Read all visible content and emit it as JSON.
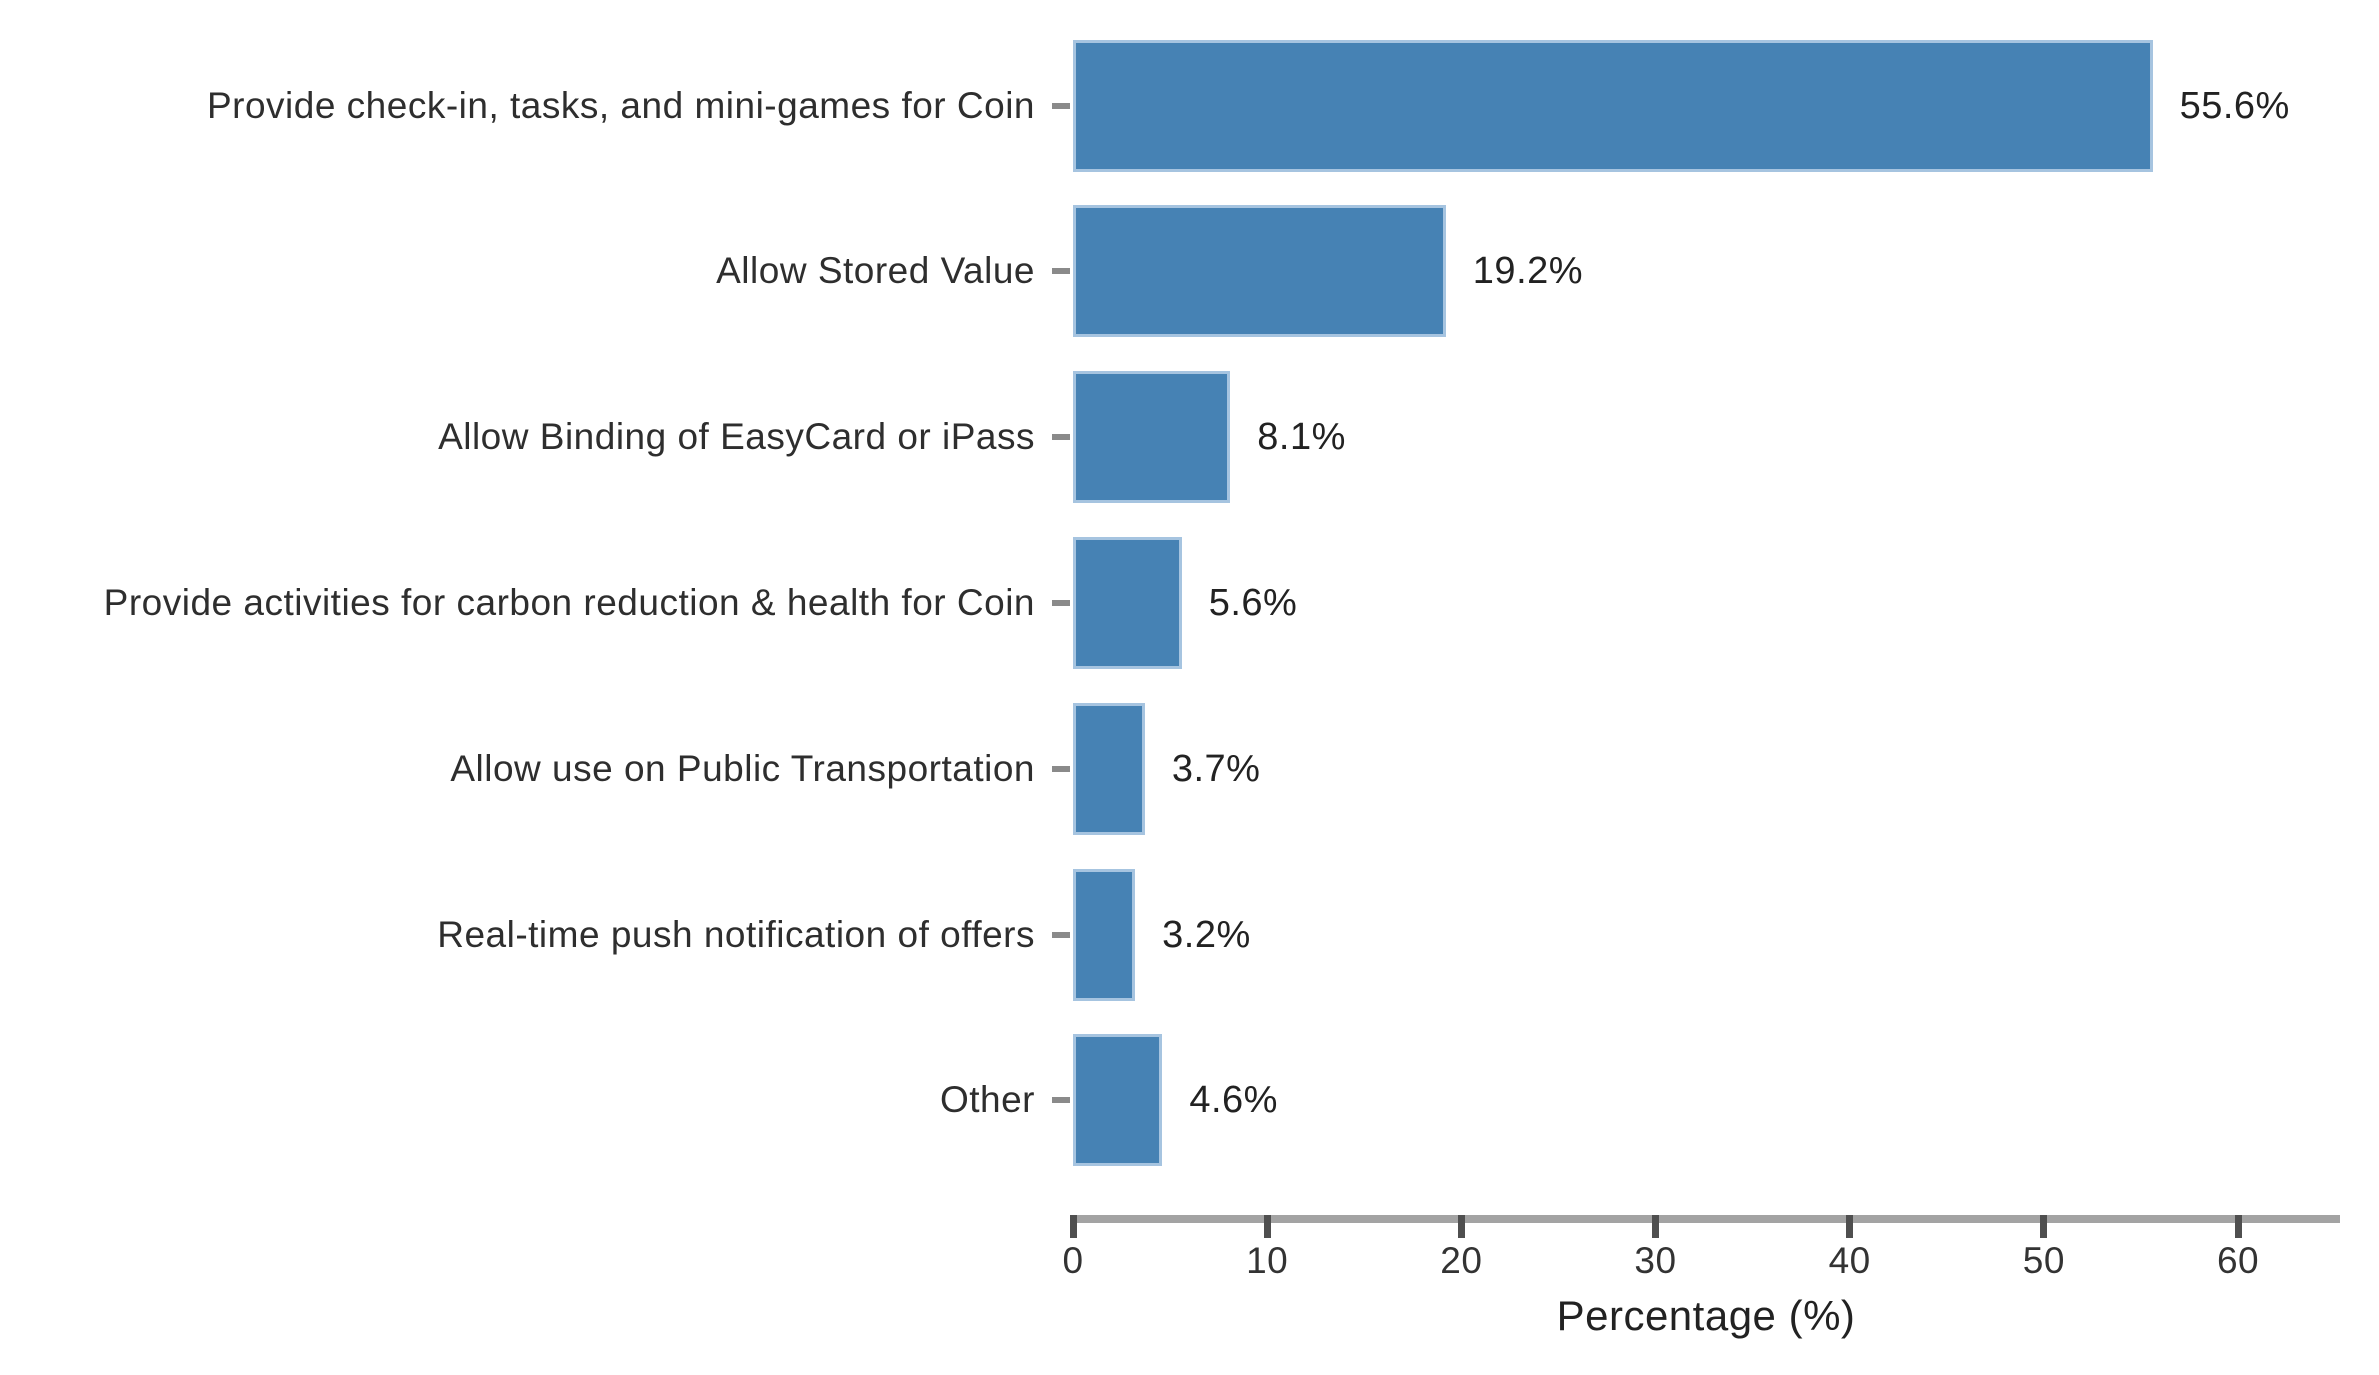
{
  "chart_data": {
    "type": "bar",
    "orientation": "horizontal",
    "title": "",
    "xlabel": "Percentage (%)",
    "ylabel": "",
    "categories": [
      "Provide check-in, tasks, and mini-games for Coin",
      "Allow Stored Value",
      "Allow Binding of EasyCard or iPass",
      "Provide activities for carbon reduction & health for Coin",
      "Allow use on Public Transportation",
      "Real-time push notification of offers",
      "Other"
    ],
    "values": [
      55.6,
      19.2,
      8.1,
      5.6,
      3.7,
      3.2,
      4.6
    ],
    "value_labels": [
      "55.6%",
      "19.2%",
      "8.1%",
      "5.6%",
      "3.7%",
      "3.2%",
      "4.6%"
    ],
    "x_ticks": [
      0,
      10,
      20,
      30,
      40,
      50,
      60
    ],
    "xlim": [
      0,
      65.3
    ],
    "grid": false,
    "legend": null,
    "bar_color": "#4682b4",
    "bar_edge_color": "#a6c4e0",
    "axis_line_color": "#a3a3a3",
    "tick_mark_color": "#4f4f4f",
    "text_color": "#2e2e2e"
  }
}
